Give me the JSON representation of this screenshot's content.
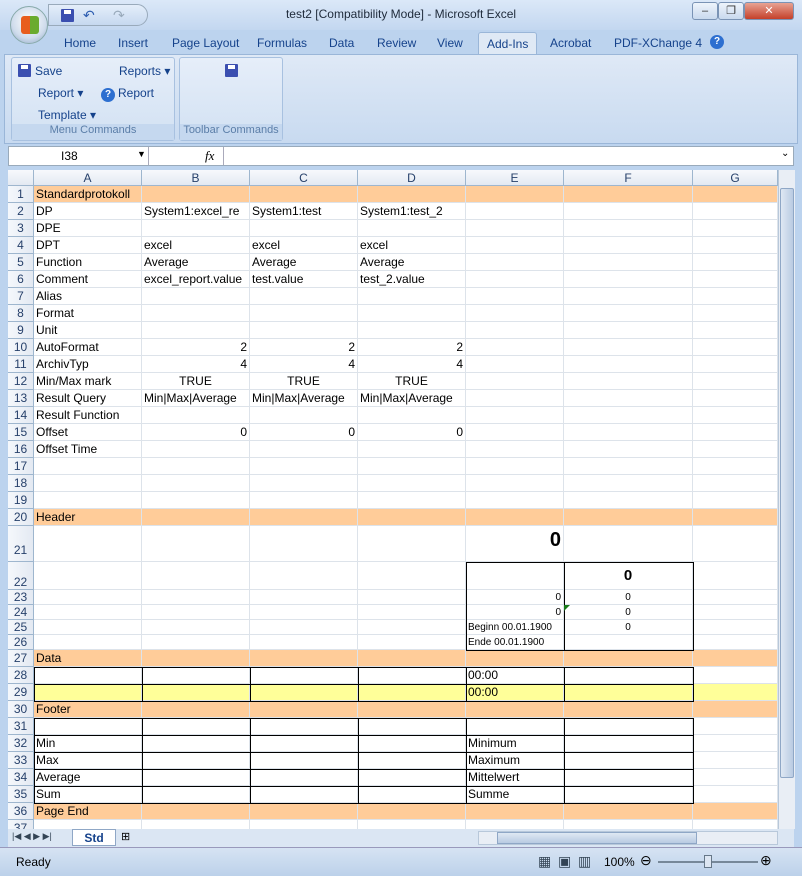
{
  "window": {
    "title": "test2  [Compatibility Mode] - Microsoft Excel",
    "minimize": "–",
    "restore": "❐",
    "close": "✕"
  },
  "ribbon": {
    "tabs": [
      "Home",
      "Insert",
      "Page Layout",
      "Formulas",
      "Data",
      "Review",
      "View",
      "Add-Ins",
      "Acrobat",
      "PDF-XChange 4"
    ],
    "active_tab": "Add-Ins",
    "menu_group": {
      "label": "Menu Commands",
      "save": "Save",
      "reports": "Reports",
      "report_menu": "Report",
      "report_help": "Report",
      "template": "Template"
    },
    "toolbar_group": {
      "label": "Toolbar Commands"
    }
  },
  "formula_bar": {
    "name_box": "I38",
    "fx": "fx",
    "value": ""
  },
  "sheet": {
    "columns": [
      "A",
      "B",
      "C",
      "D",
      "E",
      "F",
      "G"
    ],
    "header_fill": "#ffcc99",
    "highlight_fill": "#ffff99",
    "rows": [
      {
        "n": "1",
        "cells": {
          "A": "Standardprotokoll"
        }
      },
      {
        "n": "2",
        "cells": {
          "A": "DP",
          "B": "System1:excel_re",
          "C": "System1:test",
          "D": "System1:test_2"
        }
      },
      {
        "n": "3",
        "cells": {
          "A": "DPE"
        }
      },
      {
        "n": "4",
        "cells": {
          "A": "DPT",
          "B": "excel",
          "C": "excel",
          "D": "excel"
        }
      },
      {
        "n": "5",
        "cells": {
          "A": "Function",
          "B": "Average",
          "C": "Average",
          "D": "Average"
        }
      },
      {
        "n": "6",
        "cells": {
          "A": "Comment",
          "B": "excel_report.value",
          "C": "test.value",
          "D": "test_2.value"
        }
      },
      {
        "n": "7",
        "cells": {
          "A": "Alias"
        }
      },
      {
        "n": "8",
        "cells": {
          "A": "Format"
        }
      },
      {
        "n": "9",
        "cells": {
          "A": "Unit"
        }
      },
      {
        "n": "10",
        "cells": {
          "A": "AutoFormat",
          "B": "2",
          "C": "2",
          "D": "2"
        }
      },
      {
        "n": "11",
        "cells": {
          "A": "ArchivTyp",
          "B": "4",
          "C": "4",
          "D": "4"
        }
      },
      {
        "n": "12",
        "cells": {
          "A": "Min/Max mark",
          "B": "TRUE",
          "C": "TRUE",
          "D": "TRUE"
        }
      },
      {
        "n": "13",
        "cells": {
          "A": "Result Query",
          "B": "Min|Max|Average",
          "C": "Min|Max|Average",
          "D": "Min|Max|Average"
        }
      },
      {
        "n": "14",
        "cells": {
          "A": "Result Function"
        }
      },
      {
        "n": "15",
        "cells": {
          "A": "Offset",
          "B": "0",
          "C": "0",
          "D": "0"
        }
      },
      {
        "n": "16",
        "cells": {
          "A": "Offset Time"
        }
      },
      {
        "n": "17",
        "cells": {}
      },
      {
        "n": "18",
        "cells": {}
      },
      {
        "n": "19",
        "cells": {}
      },
      {
        "n": "20",
        "cells": {
          "A": "Header"
        }
      },
      {
        "n": "21",
        "cells": {
          "E": "0"
        }
      },
      {
        "n": "22",
        "cells": {
          "F": "0"
        }
      },
      {
        "n": "23",
        "cells": {
          "E": "0",
          "F": "0"
        }
      },
      {
        "n": "24",
        "cells": {
          "E": "0",
          "F": "0"
        }
      },
      {
        "n": "25",
        "cells": {
          "E": "Beginn 00.01.1900",
          "F": "0"
        }
      },
      {
        "n": "26",
        "cells": {
          "E": "Ende    00.01.1900"
        }
      },
      {
        "n": "27",
        "cells": {
          "A": "Data"
        }
      },
      {
        "n": "28",
        "cells": {
          "E": "00:00"
        }
      },
      {
        "n": "29",
        "cells": {
          "E": "00:00"
        }
      },
      {
        "n": "30",
        "cells": {
          "A": "Footer"
        }
      },
      {
        "n": "31",
        "cells": {}
      },
      {
        "n": "32",
        "cells": {
          "A": "Min",
          "E": "Minimum"
        }
      },
      {
        "n": "33",
        "cells": {
          "A": "Max",
          "E": "Maximum"
        }
      },
      {
        "n": "34",
        "cells": {
          "A": "Average",
          "E": "Mittelwert"
        }
      },
      {
        "n": "35",
        "cells": {
          "A": "Sum",
          "E": "Summe"
        }
      },
      {
        "n": "36",
        "cells": {
          "A": "Page End"
        }
      },
      {
        "n": "37",
        "cells": {}
      }
    ],
    "tab": "Std"
  },
  "status": {
    "text": "Ready",
    "zoom": "100%",
    "zoom_level": 100
  }
}
